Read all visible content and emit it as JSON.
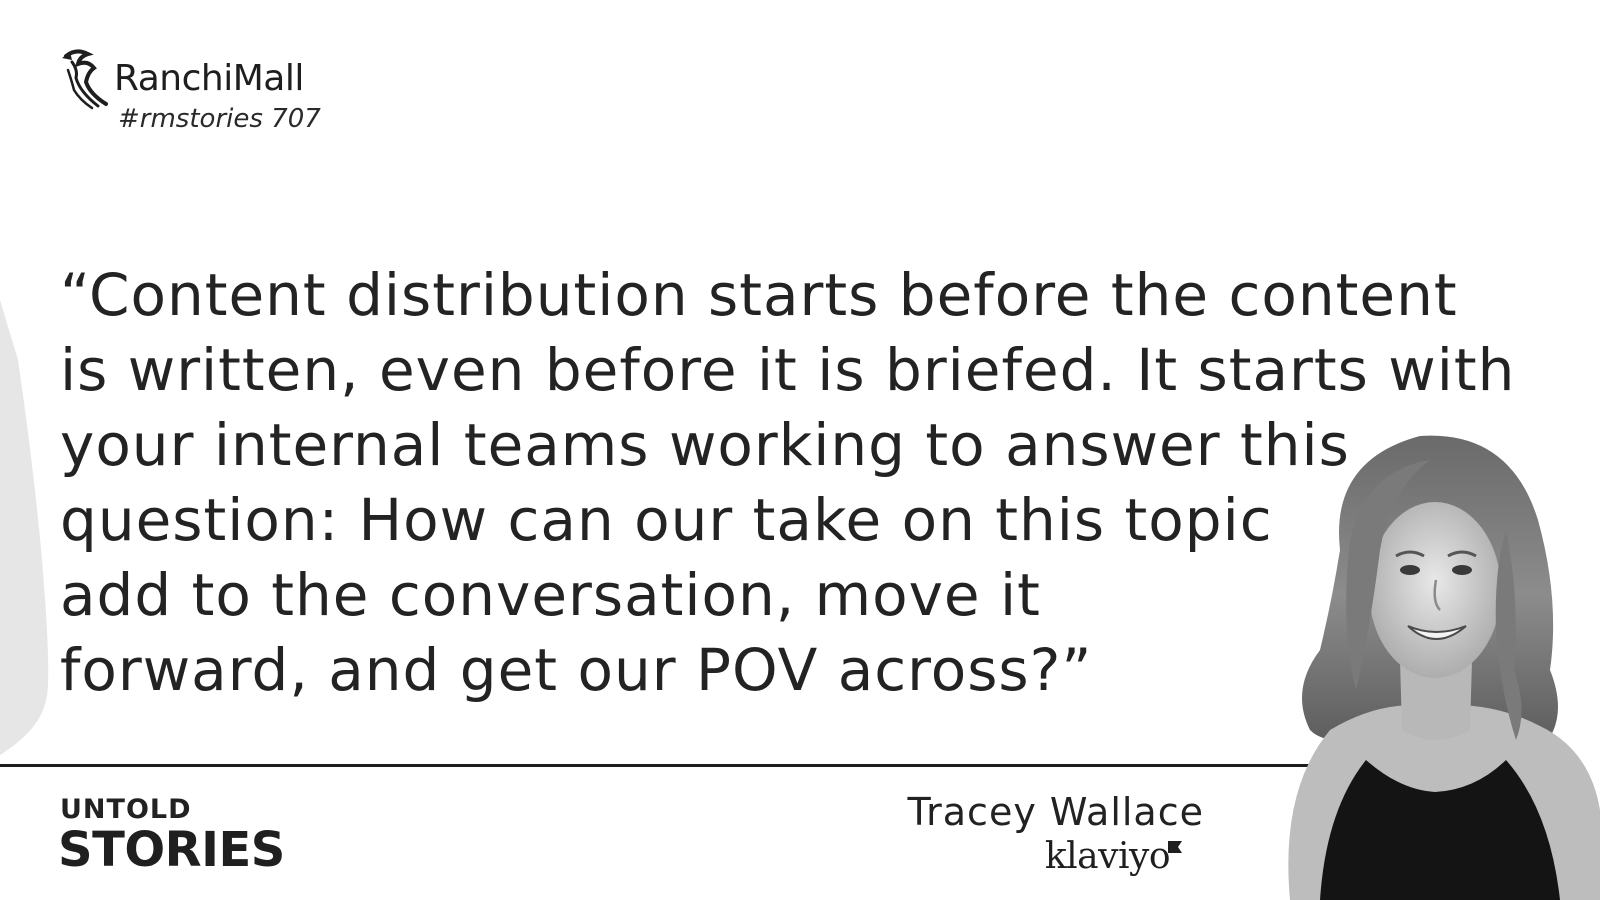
{
  "brand": {
    "name": "RanchiMall",
    "tag": "#rmstories 707",
    "logo_icon": "seahorse-logo-icon"
  },
  "quote": {
    "lines": [
      "“Content distribution starts before the content",
      "is written, even before it is briefed. It starts with",
      "your internal teams working to answer this",
      "question: How can our take on this topic",
      "add to the conversation, move it",
      "forward, and get our POV across?”"
    ]
  },
  "series": {
    "line1": "UNTOLD",
    "line2": "STORIES"
  },
  "speaker": {
    "name": "Tracey Wallace",
    "company": "klaviyo"
  },
  "colors": {
    "text": "#232323",
    "background": "#ffffff",
    "accent_shape": "#e6e6e6",
    "divider": "#1c1c1c"
  }
}
